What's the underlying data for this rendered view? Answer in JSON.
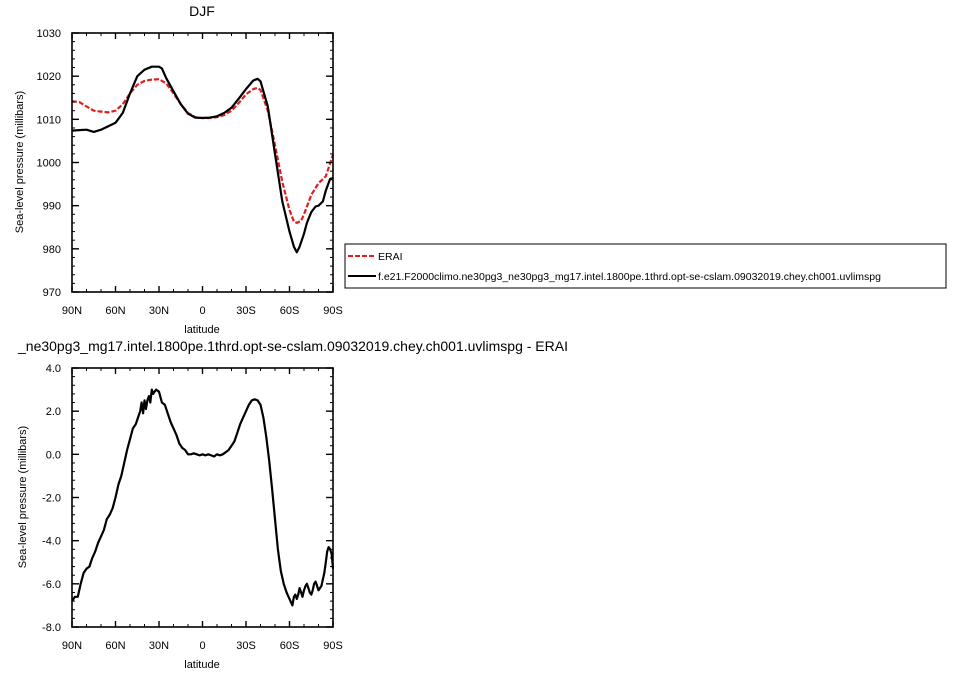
{
  "colors": {
    "erai": "#e11e1e",
    "model": "#000000",
    "axis": "#000000"
  },
  "chart_data": [
    {
      "type": "line",
      "title": "DJF",
      "xlabel": "latitude",
      "ylabel": "Sea-level pressure (millibars)",
      "xlim": [
        90,
        -90
      ],
      "ylim": [
        970,
        1030
      ],
      "xticks": [
        {
          "v": 90,
          "label": "90N"
        },
        {
          "v": 60,
          "label": "60N"
        },
        {
          "v": 30,
          "label": "30N"
        },
        {
          "v": 0,
          "label": "0"
        },
        {
          "v": -30,
          "label": "30S"
        },
        {
          "v": -60,
          "label": "60S"
        },
        {
          "v": -90,
          "label": "90S"
        }
      ],
      "yticks": [
        {
          "v": 970,
          "label": "970"
        },
        {
          "v": 980,
          "label": "980"
        },
        {
          "v": 990,
          "label": "990"
        },
        {
          "v": 1000,
          "label": "1000"
        },
        {
          "v": 1010,
          "label": "1010"
        },
        {
          "v": 1020,
          "label": "1020"
        },
        {
          "v": 1030,
          "label": "1030"
        }
      ],
      "legend_position": "right",
      "series": [
        {
          "name": "ERAI",
          "style": "dashed",
          "x": [
            90,
            85,
            80,
            75,
            70,
            65,
            60,
            55,
            50,
            45,
            40,
            35,
            30,
            25,
            20,
            15,
            10,
            5,
            0,
            -5,
            -10,
            -15,
            -20,
            -25,
            -30,
            -35,
            -38,
            -40,
            -45,
            -50,
            -55,
            -60,
            -63,
            -65,
            -68,
            -70,
            -75,
            -80,
            -85,
            -90
          ],
          "values": [
            1014.2,
            1014.0,
            1013.0,
            1012.0,
            1011.8,
            1011.6,
            1012.0,
            1013.5,
            1016.0,
            1018.0,
            1018.9,
            1019.2,
            1019.3,
            1018.3,
            1016.0,
            1013.5,
            1011.5,
            1010.5,
            1010.3,
            1010.3,
            1010.5,
            1011.0,
            1012.0,
            1013.8,
            1015.8,
            1017.0,
            1017.3,
            1016.8,
            1012.0,
            1004.0,
            995.5,
            989.0,
            986.3,
            986.0,
            986.5,
            988.0,
            992.5,
            995.2,
            996.8,
            1001.8
          ]
        },
        {
          "name": "f.e21.F2000climo.ne30pg3_ne30pg3_mg17.intel.1800pe.1thrd.opt-se-cslam.09032019.chey.ch001.uvlimspg",
          "style": "solid",
          "x": [
            90,
            85,
            80,
            75,
            70,
            65,
            60,
            55,
            50,
            45,
            40,
            35,
            30,
            28,
            25,
            20,
            15,
            10,
            5,
            0,
            -5,
            -10,
            -15,
            -20,
            -25,
            -30,
            -35,
            -38,
            -40,
            -45,
            -50,
            -55,
            -60,
            -63,
            -65,
            -67,
            -70,
            -72,
            -75,
            -78,
            -80,
            -83,
            -85,
            -88,
            -90
          ],
          "values": [
            1007.4,
            1007.5,
            1007.6,
            1007.1,
            1007.6,
            1008.4,
            1009.2,
            1011.5,
            1016.0,
            1020.0,
            1021.5,
            1022.2,
            1022.2,
            1021.8,
            1019.5,
            1016.5,
            1013.5,
            1011.3,
            1010.4,
            1010.3,
            1010.4,
            1010.7,
            1011.5,
            1012.7,
            1014.8,
            1017.0,
            1019.0,
            1019.4,
            1018.8,
            1013.0,
            1002.0,
            991.0,
            984.0,
            980.5,
            979.2,
            980.5,
            983.5,
            986.0,
            988.5,
            989.8,
            990.0,
            991.0,
            993.5,
            996.2,
            996.4
          ]
        }
      ]
    },
    {
      "type": "line",
      "title": "_ne30pg3_mg17.intel.1800pe.1thrd.opt-se-cslam.09032019.chey.ch001.uvlimspg - ERAI",
      "xlabel": "latitude",
      "ylabel": "Sea-level pressure (millibars)",
      "xlim": [
        90,
        -90
      ],
      "ylim": [
        -8,
        4
      ],
      "xticks": [
        {
          "v": 90,
          "label": "90N"
        },
        {
          "v": 60,
          "label": "60N"
        },
        {
          "v": 30,
          "label": "30N"
        },
        {
          "v": 0,
          "label": "0"
        },
        {
          "v": -30,
          "label": "30S"
        },
        {
          "v": -60,
          "label": "60S"
        },
        {
          "v": -90,
          "label": "90S"
        }
      ],
      "yticks": [
        {
          "v": -8,
          "label": "-8.0"
        },
        {
          "v": -6,
          "label": "-6.0"
        },
        {
          "v": -4,
          "label": "-4.0"
        },
        {
          "v": -2,
          "label": "-2.0"
        },
        {
          "v": 0,
          "label": "0.0"
        },
        {
          "v": 2,
          "label": "2.0"
        },
        {
          "v": 4,
          "label": "4.0"
        }
      ],
      "series": [
        {
          "style": "solid",
          "x": [
            90,
            88,
            86,
            84,
            82,
            80,
            78,
            76,
            74,
            72,
            70,
            68,
            66,
            64,
            62,
            60,
            58,
            56,
            54,
            52,
            50,
            48,
            46,
            44,
            43,
            42,
            41,
            40,
            39,
            38,
            37,
            36,
            35,
            34,
            33,
            32,
            30,
            28,
            26,
            24,
            22,
            20,
            18,
            16,
            14,
            12,
            10,
            8,
            6,
            4,
            2,
            0,
            -2,
            -4,
            -6,
            -8,
            -10,
            -12,
            -14,
            -16,
            -18,
            -20,
            -22,
            -24,
            -26,
            -28,
            -30,
            -32,
            -34,
            -36,
            -38,
            -40,
            -42,
            -44,
            -46,
            -48,
            -50,
            -52,
            -54,
            -56,
            -58,
            -60,
            -62,
            -63,
            -64,
            -65,
            -66,
            -67,
            -68,
            -69,
            -70,
            -71,
            -72,
            -73,
            -74,
            -75,
            -76,
            -77,
            -78,
            -79,
            -80,
            -82,
            -84,
            -85,
            -86,
            -87,
            -88,
            -89,
            -90
          ],
          "values": [
            -6.8,
            -6.6,
            -6.6,
            -6.0,
            -5.5,
            -5.3,
            -5.2,
            -4.8,
            -4.5,
            -4.1,
            -3.8,
            -3.5,
            -3.0,
            -2.8,
            -2.5,
            -2.0,
            -1.4,
            -1.0,
            -0.4,
            0.2,
            0.7,
            1.2,
            1.4,
            1.8,
            2.0,
            2.4,
            1.9,
            2.5,
            2.1,
            2.5,
            2.7,
            2.4,
            3.0,
            2.8,
            2.9,
            3.0,
            2.9,
            2.4,
            2.3,
            1.9,
            1.5,
            1.2,
            0.9,
            0.5,
            0.3,
            0.2,
            0.0,
            0.0,
            0.05,
            0.0,
            -0.05,
            0.0,
            -0.05,
            0.0,
            -0.05,
            -0.1,
            0.0,
            -0.05,
            0.0,
            0.1,
            0.2,
            0.4,
            0.6,
            1.0,
            1.4,
            1.7,
            2.0,
            2.3,
            2.5,
            2.55,
            2.5,
            2.3,
            1.7,
            0.8,
            -0.3,
            -1.6,
            -3.0,
            -4.4,
            -5.4,
            -6.0,
            -6.4,
            -6.7,
            -7.0,
            -6.6,
            -6.5,
            -6.7,
            -6.5,
            -6.2,
            -6.4,
            -6.6,
            -6.3,
            -6.1,
            -6.0,
            -6.2,
            -6.4,
            -6.5,
            -6.3,
            -6.0,
            -5.9,
            -6.1,
            -6.3,
            -6.1,
            -5.5,
            -5.0,
            -4.5,
            -4.3,
            -4.4,
            -4.6,
            -5.3
          ]
        }
      ]
    }
  ]
}
